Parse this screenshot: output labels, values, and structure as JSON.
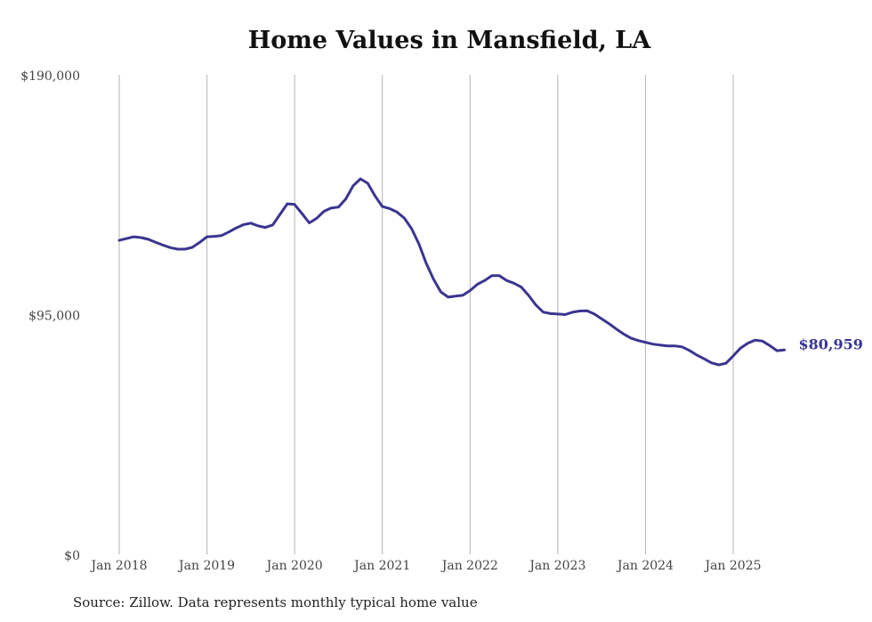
{
  "chart_data": {
    "type": "line",
    "title": "Home Values in Mansfield, LA",
    "xlabel": "",
    "ylabel": "",
    "ylim": [
      0,
      190000
    ],
    "y_ticks": [
      {
        "value": 0,
        "label": "$0"
      },
      {
        "value": 95000,
        "label": "$95,000"
      },
      {
        "value": 190000,
        "label": "$190,000"
      }
    ],
    "x_ticks": [
      {
        "month_index": 0,
        "label": "Jan 2018"
      },
      {
        "month_index": 12,
        "label": "Jan 2019"
      },
      {
        "month_index": 24,
        "label": "Jan 2020"
      },
      {
        "month_index": 36,
        "label": "Jan 2021"
      },
      {
        "month_index": 48,
        "label": "Jan 2022"
      },
      {
        "month_index": 60,
        "label": "Jan 2023"
      },
      {
        "month_index": 72,
        "label": "Jan 2024"
      },
      {
        "month_index": 84,
        "label": "Jan 2025"
      }
    ],
    "x_start": "Jan 2018",
    "x_unit": "month",
    "grid": "vertical",
    "series": [
      {
        "name": "Typical home value",
        "color": "#3a3590",
        "values": [
          124400,
          125100,
          125800,
          125500,
          124800,
          123600,
          122500,
          121500,
          120900,
          120900,
          121600,
          123600,
          125800,
          126000,
          126300,
          127700,
          129300,
          130600,
          131200,
          130100,
          129500,
          130500,
          134700,
          138900,
          138600,
          135000,
          131300,
          133100,
          135900,
          137200,
          137600,
          140800,
          146000,
          148750,
          147000,
          142000,
          137800,
          137000,
          135600,
          133200,
          129000,
          123000,
          115300,
          109000,
          104000,
          101900,
          102300,
          102600,
          104500,
          107000,
          108500,
          110400,
          110400,
          108500,
          107400,
          105900,
          102600,
          98800,
          96000,
          95400,
          95200,
          95000,
          95900,
          96400,
          96500,
          95200,
          93300,
          91400,
          89300,
          87300,
          85700,
          84700,
          84000,
          83300,
          82900,
          82600,
          82600,
          82200,
          80800,
          79000,
          77500,
          75900,
          75100,
          75700,
          78600,
          81700,
          83600,
          84900,
          84500,
          82700,
          80700,
          80959
        ]
      }
    ],
    "end_label": "$80,959",
    "source_note": "Source: Zillow. Data represents monthly typical home value"
  }
}
